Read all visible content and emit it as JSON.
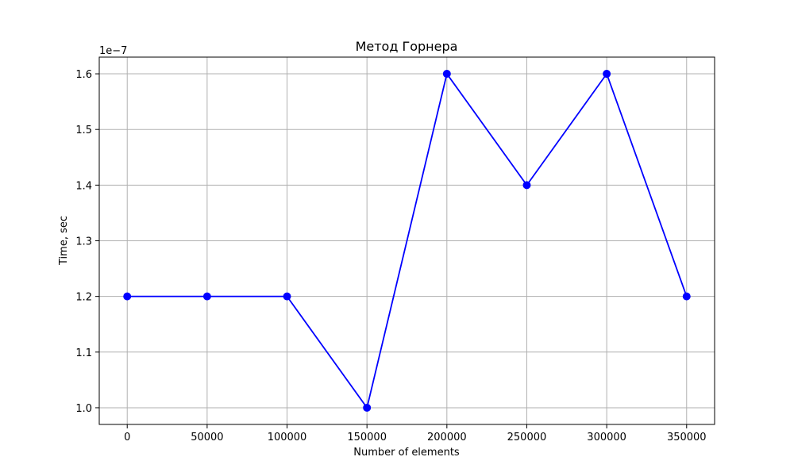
{
  "chart_data": {
    "type": "line",
    "title": "Метод Горнера",
    "xlabel": "Number of elements",
    "ylabel": "Time, sec",
    "y_offset_text": "1e−7",
    "x": [
      0,
      50000,
      100000,
      150000,
      200000,
      250000,
      300000,
      350000
    ],
    "x_tick_labels": [
      "0",
      "50000",
      "100000",
      "150000",
      "200000",
      "250000",
      "300000",
      "350000"
    ],
    "y_ticks": [
      1.0,
      1.1,
      1.2,
      1.3,
      1.4,
      1.5,
      1.6
    ],
    "y_tick_labels": [
      "1.0",
      "1.1",
      "1.2",
      "1.3",
      "1.4",
      "1.5",
      "1.6"
    ],
    "series": [
      {
        "values": [
          1.2,
          1.2,
          1.2,
          1.0,
          1.6,
          1.4,
          1.6,
          1.2
        ],
        "color": "#0000ff",
        "marker": "circle"
      }
    ],
    "xlim": [
      -17500,
      367500
    ],
    "ylim": [
      0.97,
      1.63
    ],
    "grid": true,
    "colors": {
      "line": "#0000ff",
      "grid": "#b0b0b0",
      "axes": "#000000"
    }
  }
}
